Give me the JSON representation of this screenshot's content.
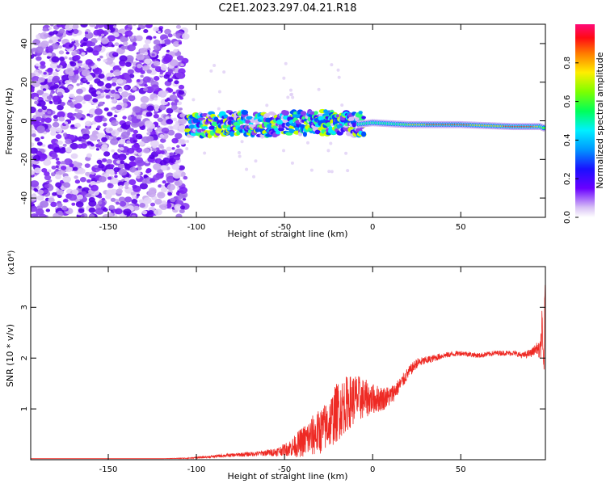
{
  "title": "C2E1.2023.297.04.21.R18",
  "chart_data": [
    {
      "type": "heatmap",
      "xlabel": "Height of straight line (km)",
      "ylabel": "Frequency (Hz)",
      "xlim": [
        -194,
        98
      ],
      "ylim": [
        -50,
        50
      ],
      "xticks": [
        "-150",
        "-100",
        "-50",
        "0",
        "50"
      ],
      "xtick_values": [
        -150,
        -100,
        -50,
        0,
        50
      ],
      "yticks": [
        "-40",
        "-20",
        "0",
        "20",
        "40"
      ],
      "ytick_values": [
        -40,
        -20,
        0,
        20,
        40
      ],
      "colorbar": {
        "label": "Normalized spectral amplitude",
        "range": [
          0,
          1
        ],
        "ticks": [
          "0.0",
          "0.2",
          "0.4",
          "0.6",
          "0.8"
        ],
        "tick_values": [
          0,
          0.2,
          0.4,
          0.6,
          0.8
        ]
      },
      "noise_region_x": [
        -194,
        -106
      ],
      "signal_band": {
        "x": [
          -105,
          -80,
          -60,
          -40,
          -20,
          -10,
          0,
          20,
          50,
          80,
          95,
          98
        ],
        "center_freq": [
          -3,
          -1,
          -2,
          -1,
          -1,
          -2,
          -1,
          -2,
          -2,
          -3,
          -3,
          -4
        ]
      }
    },
    {
      "type": "line",
      "xlabel": "Height of straight line (km)",
      "ylabel": "SNR (10 * v/v)",
      "multiplier": "(x10⁴)",
      "xlim": [
        -194,
        98
      ],
      "ylim": [
        0,
        3.8
      ],
      "xticks": [
        "-150",
        "-100",
        "-50",
        "0",
        "50"
      ],
      "xtick_values": [
        -150,
        -100,
        -50,
        0,
        50
      ],
      "yticks": [
        "1",
        "2",
        "3"
      ],
      "ytick_values": [
        1,
        2,
        3
      ],
      "series": [
        {
          "color": "#ee2a24",
          "x": [
            -194,
            -150,
            -120,
            -105,
            -95,
            -85,
            -75,
            -65,
            -55,
            -50,
            -45,
            -40,
            -35,
            -30,
            -25,
            -20,
            -15,
            -10,
            -5,
            0,
            5,
            10,
            15,
            20,
            25,
            30,
            40,
            50,
            60,
            70,
            80,
            85,
            90,
            93,
            95,
            96,
            97,
            98
          ],
          "y": [
            0.02,
            0.02,
            0.02,
            0.03,
            0.05,
            0.08,
            0.1,
            0.12,
            0.15,
            0.2,
            0.25,
            0.35,
            0.45,
            0.55,
            0.7,
            0.95,
            1.1,
            1.2,
            1.2,
            1.2,
            1.2,
            1.25,
            1.45,
            1.7,
            1.9,
            1.95,
            2.05,
            2.1,
            2.05,
            2.1,
            2.1,
            2.05,
            2.1,
            2.2,
            2.1,
            2.6,
            1.8,
            3.2
          ],
          "noise": [
            0,
            0,
            0,
            0.01,
            0.02,
            0.03,
            0.04,
            0.05,
            0.08,
            0.12,
            0.2,
            0.3,
            0.4,
            0.45,
            0.5,
            0.6,
            0.55,
            0.5,
            0.4,
            0.3,
            0.25,
            0.2,
            0.15,
            0.12,
            0.1,
            0.08,
            0.06,
            0.05,
            0.05,
            0.05,
            0.05,
            0.06,
            0.08,
            0.1,
            0.2,
            0.4,
            0.5,
            0.6
          ]
        }
      ]
    }
  ]
}
